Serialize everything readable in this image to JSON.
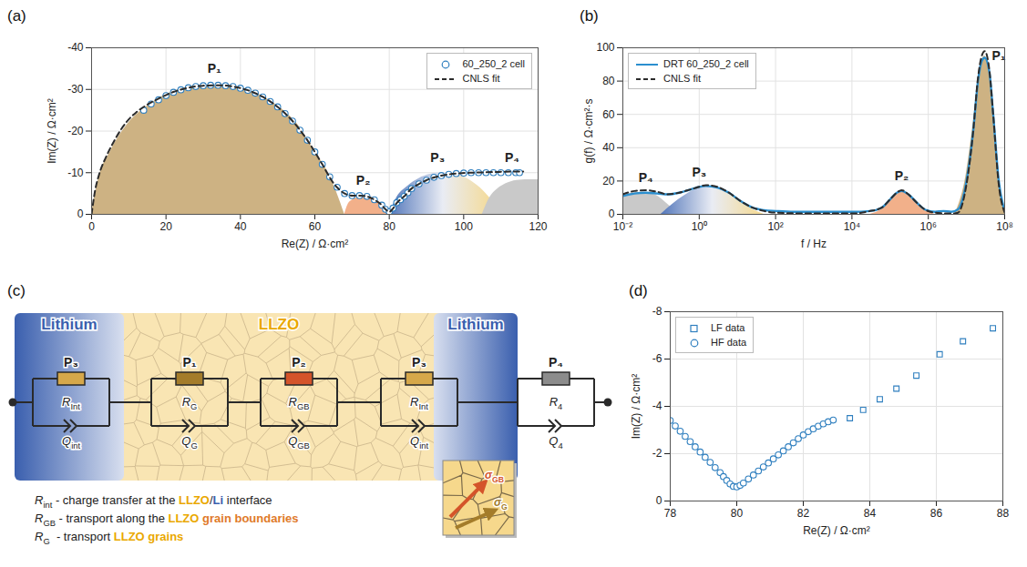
{
  "chart_data": [
    {
      "panel_label": "(a)",
      "type": "line",
      "xlabel": "Re(Z) / Ω·cm²",
      "ylabel": "Im(Z) / Ω·cm²",
      "xlim": [
        0,
        120
      ],
      "xticks": [
        0,
        20,
        40,
        60,
        80,
        100,
        120
      ],
      "ylim": [
        0,
        -40
      ],
      "yticks": [
        -40,
        -30,
        -20,
        -10,
        0
      ],
      "grid": true,
      "legend": "top-right",
      "series": [
        {
          "name": "60_250_2 cell",
          "type": "scatter",
          "marker": "circle",
          "color": "#2f7fbf",
          "x": [
            14,
            16,
            18,
            20,
            22,
            24,
            26,
            28,
            30,
            32,
            34,
            36,
            38,
            40,
            42,
            44,
            46,
            48,
            50,
            52,
            54,
            56,
            58,
            60,
            62,
            64,
            66,
            68,
            70,
            72,
            74,
            76,
            78,
            79,
            80,
            81,
            82,
            83,
            84,
            85,
            86,
            88,
            90,
            92,
            94,
            96,
            98,
            100,
            102,
            104,
            106,
            108,
            110,
            112,
            114,
            115
          ],
          "y": [
            -25,
            -26.5,
            -27.5,
            -28.5,
            -29.3,
            -29.9,
            -30.4,
            -30.7,
            -30.9,
            -31,
            -31,
            -30.9,
            -30.7,
            -30.3,
            -29.8,
            -29.1,
            -28.2,
            -27.1,
            -25.8,
            -24.2,
            -22.4,
            -20.2,
            -17.8,
            -15,
            -12,
            -9,
            -6.5,
            -5,
            -4.5,
            -4.5,
            -4.3,
            -3.5,
            -2.2,
            -1.2,
            -0.6,
            -1.5,
            -2.8,
            -3.5,
            -4.3,
            -5.2,
            -6.2,
            -7.3,
            -8.2,
            -8.9,
            -9.3,
            -9.6,
            -9.8,
            -9.9,
            -10,
            -10,
            -10,
            -10,
            -10,
            -10,
            -10,
            -10
          ]
        },
        {
          "name": "CNLS fit",
          "type": "line",
          "line_style": "dashed",
          "color": "#2b2b2b",
          "x": [
            0,
            1,
            2,
            4,
            6,
            8,
            10,
            12,
            14,
            18,
            22,
            26,
            30,
            34,
            38,
            42,
            46,
            50,
            54,
            58,
            62,
            65,
            68,
            70,
            72,
            74,
            76,
            78,
            79,
            80,
            81,
            82,
            84,
            86,
            88,
            90,
            94,
            98,
            102,
            106,
            110,
            116
          ],
          "y": [
            0,
            -6,
            -9.5,
            -14,
            -17.5,
            -20.5,
            -22.8,
            -24.5,
            -25.8,
            -27.8,
            -29.4,
            -30.4,
            -30.9,
            -31,
            -30.7,
            -29.8,
            -28.2,
            -25.8,
            -22.4,
            -17.8,
            -12,
            -7.5,
            -5,
            -4.5,
            -4.5,
            -4.3,
            -3.5,
            -2.2,
            -1.2,
            -0.6,
            -1.4,
            -2.7,
            -4.3,
            -6.2,
            -7.3,
            -8.2,
            -9.3,
            -9.8,
            -10,
            -10.1,
            -10.2,
            -10.3
          ]
        }
      ],
      "areas": [
        {
          "label": "P₁",
          "color": "#cdb283",
          "label_x": 33,
          "label_y": -35,
          "x": [
            0,
            2,
            5,
            10,
            15,
            20,
            25,
            30,
            35,
            40,
            45,
            50,
            55,
            60,
            63,
            66,
            68
          ],
          "y": [
            0,
            -9,
            -15,
            -22,
            -26,
            -28.8,
            -30.3,
            -31,
            -31,
            -30.3,
            -28.8,
            -26,
            -22,
            -15,
            -11,
            -5,
            0
          ]
        },
        {
          "label": "P₂",
          "color": "#f2b08a",
          "label_x": 73,
          "label_y": -8,
          "x": [
            68,
            69,
            70,
            72,
            74,
            76,
            78,
            79,
            80
          ],
          "y": [
            0,
            -2.5,
            -3.4,
            -4.1,
            -4.2,
            -3.6,
            -2.5,
            -1.6,
            0
          ]
        },
        {
          "label": "P₃",
          "colors": [
            "#5276ba",
            "#e9ecf4",
            "#f5d98e"
          ],
          "label_x": 93,
          "label_y": -13.5,
          "x": [
            80,
            82,
            85,
            88,
            91,
            94,
            97,
            100,
            103,
            106,
            108,
            109
          ],
          "y": [
            0,
            -4,
            -6.8,
            -8.6,
            -9.6,
            -10,
            -9.8,
            -9,
            -7.4,
            -5,
            -2.5,
            0
          ]
        },
        {
          "label": "P₄",
          "color": "#c9c9c9",
          "label_x": 113,
          "label_y": -13.5,
          "x": [
            105,
            107,
            109,
            112,
            115,
            118,
            120
          ],
          "y": [
            0,
            -4,
            -6,
            -7.6,
            -8.2,
            -8.3,
            -8.3
          ]
        }
      ]
    },
    {
      "panel_label": "(b)",
      "type": "line",
      "xlabel": "f / Hz",
      "ylabel": "g(f) / Ω·cm²·s",
      "log": "x",
      "xlim": [
        0.01,
        100000000
      ],
      "xticks": [
        {
          "value": 0.01,
          "label": "10⁻²"
        },
        {
          "value": 1,
          "label": "10⁰"
        },
        {
          "value": 100,
          "label": "10²"
        },
        {
          "value": 10000,
          "label": "10⁴"
        },
        {
          "value": 1000000,
          "label": "10⁶"
        },
        {
          "value": 100000000,
          "label": "10⁸"
        }
      ],
      "ylim": [
        0,
        100
      ],
      "yticks": [
        0,
        20,
        40,
        60,
        80,
        100
      ],
      "grid": true,
      "legend": "top-left",
      "series": [
        {
          "name": "DRT 60_250_2 cell",
          "type": "line",
          "line_style": "solid",
          "color": "#2b8fcf",
          "x": [
            0.01,
            0.02,
            0.04,
            0.08,
            0.15,
            0.3,
            0.6,
            1,
            1.5,
            3,
            6,
            12,
            25,
            50,
            100,
            300,
            1000,
            3000,
            10000,
            30000,
            60000,
            100000,
            150000,
            200000,
            300000,
            500000,
            800000,
            1500000,
            2500000,
            4000000,
            6000000,
            10000000,
            15000000,
            20000000,
            25000000,
            30000000,
            40000000,
            50000000,
            70000000,
            100000000
          ],
          "y": [
            11,
            12.5,
            13,
            12.5,
            12,
            13,
            15,
            16.5,
            17,
            16,
            13,
            8,
            4,
            2.5,
            2,
            1.5,
            1.5,
            1.5,
            1.5,
            2,
            4,
            9,
            13,
            14,
            12,
            7,
            3,
            1.5,
            2,
            1.5,
            3,
            20,
            50,
            80,
            92,
            94,
            85,
            60,
            20,
            2
          ]
        },
        {
          "name": "CNLS fit",
          "type": "line",
          "line_style": "dashed",
          "color": "#2b2b2b",
          "x": [
            0.01,
            0.02,
            0.04,
            0.08,
            0.15,
            0.3,
            0.6,
            1,
            1.5,
            3,
            6,
            12,
            25,
            50,
            100,
            1000,
            10000,
            30000,
            60000,
            100000,
            150000,
            200000,
            300000,
            500000,
            800000,
            1500000,
            4000000,
            6000000,
            10000000,
            15000000,
            20000000,
            25000000,
            30000000,
            40000000,
            50000000,
            70000000,
            100000000
          ],
          "y": [
            12,
            14,
            14.5,
            13.5,
            12,
            13,
            15,
            16.5,
            17.5,
            16.5,
            13,
            8,
            4,
            2,
            1,
            0.5,
            0.5,
            2,
            4,
            9,
            13,
            14.5,
            12,
            7,
            3,
            1,
            0.5,
            1,
            18,
            50,
            82,
            95,
            98,
            86,
            60,
            18,
            1
          ]
        }
      ],
      "areas": [
        {
          "label": "P₄",
          "color": "#c9c9c9",
          "label_x": 0.04,
          "label_y": 22,
          "x": [
            0.01,
            0.02,
            0.04,
            0.08,
            0.15,
            0.3
          ],
          "y": [
            11,
            13,
            13,
            11,
            6,
            0
          ]
        },
        {
          "label": "P₃",
          "colors": [
            "#5276ba",
            "#e9ecf4",
            "#f5d98e"
          ],
          "label_x": 1,
          "label_y": 25,
          "x": [
            0.1,
            0.2,
            0.4,
            0.8,
            1.5,
            3,
            6,
            12,
            25,
            50
          ],
          "y": [
            0,
            6,
            11,
            15,
            17,
            16,
            13,
            8,
            3,
            0
          ]
        },
        {
          "label": "P₂",
          "color": "#f2b08a",
          "label_x": 200000,
          "label_y": 23,
          "x": [
            30000,
            60000,
            100000,
            150000,
            200000,
            300000,
            500000,
            800000,
            1500000
          ],
          "y": [
            0,
            3,
            8,
            12,
            14,
            12,
            7,
            3,
            0
          ]
        },
        {
          "label": "P₁",
          "color": "#cdb283",
          "label_x": 70000000,
          "label_y": 95,
          "x": [
            5000000,
            10000000,
            15000000,
            20000000,
            25000000,
            30000000,
            40000000,
            50000000,
            70000000,
            100000000
          ],
          "y": [
            0,
            25,
            55,
            80,
            92,
            95,
            85,
            60,
            20,
            2
          ]
        }
      ]
    },
    {
      "panel_label": "(d)",
      "type": "scatter",
      "xlabel": "Re(Z) / Ω·cm²",
      "ylabel": "Im(Z) / Ω·cm²",
      "xlim": [
        78,
        88
      ],
      "xticks": [
        78,
        80,
        82,
        84,
        86,
        88
      ],
      "ylim": [
        0,
        -8
      ],
      "yticks": [
        -8,
        -6,
        -4,
        -2,
        0
      ],
      "grid": true,
      "legend": "top-left",
      "series": [
        {
          "name": "LF data",
          "type": "scatter",
          "marker": "square",
          "color": "#2f7fbf",
          "x": [
            83.4,
            83.8,
            84.3,
            84.8,
            85.4,
            86.1,
            86.8,
            87.7
          ],
          "y": [
            -3.5,
            -3.85,
            -4.3,
            -4.75,
            -5.3,
            -6.2,
            -6.75,
            -7.3
          ]
        },
        {
          "name": "HF data",
          "type": "scatter",
          "marker": "circle",
          "color": "#2f7fbf",
          "x": [
            78,
            78.15,
            78.3,
            78.45,
            78.6,
            78.75,
            78.9,
            79.05,
            79.2,
            79.35,
            79.5,
            79.6,
            79.7,
            79.8,
            79.9,
            80,
            80.1,
            80.2,
            80.35,
            80.5,
            80.65,
            80.8,
            80.95,
            81.1,
            81.25,
            81.4,
            81.55,
            81.7,
            81.85,
            82,
            82.15,
            82.3,
            82.45,
            82.6,
            82.75,
            82.9
          ],
          "y": [
            -3.4,
            -3.17,
            -2.95,
            -2.73,
            -2.51,
            -2.29,
            -2.07,
            -1.85,
            -1.63,
            -1.41,
            -1.2,
            -1.03,
            -0.87,
            -0.72,
            -0.62,
            -0.6,
            -0.66,
            -0.76,
            -0.93,
            -1.1,
            -1.27,
            -1.44,
            -1.61,
            -1.78,
            -1.95,
            -2.12,
            -2.29,
            -2.46,
            -2.63,
            -2.79,
            -2.93,
            -3.05,
            -3.16,
            -3.26,
            -3.35,
            -3.42
          ]
        }
      ]
    }
  ],
  "diagram": {
    "panel_label": "(c)",
    "regions": [
      {
        "label": "Lithium",
        "color": "#3a5fae"
      },
      {
        "label": "LLZO",
        "color": "#eaa800"
      },
      {
        "label": "Lithium",
        "color": "#3a5fae"
      }
    ],
    "elements": [
      {
        "label": "P₃",
        "R": {
          "main": "R",
          "sub": "Int"
        },
        "Q": {
          "main": "Q",
          "sub": "int"
        },
        "color": "#d6a84a"
      },
      {
        "label": "P₁",
        "R": {
          "main": "R",
          "sub": "G"
        },
        "Q": {
          "main": "Q",
          "sub": "G"
        },
        "color": "#a47c2a"
      },
      {
        "label": "P₂",
        "R": {
          "main": "R",
          "sub": "GB"
        },
        "Q": {
          "main": "Q",
          "sub": "GB"
        },
        "color": "#d4542a"
      },
      {
        "label": "P₃",
        "R": {
          "main": "R",
          "sub": "Int"
        },
        "Q": {
          "main": "Q",
          "sub": "int"
        },
        "color": "#d6a84a"
      },
      {
        "label": "P₄",
        "R": {
          "main": "R",
          "sub": "4"
        },
        "Q": {
          "main": "Q",
          "sub": "4"
        },
        "color": "#8c8c8c"
      }
    ],
    "definitions": [
      {
        "symbol": {
          "main": "R",
          "sub": "int"
        },
        "segments": [
          {
            "text": " - charge transfer at the "
          },
          {
            "text": "LLZO",
            "color": "#eaa800"
          },
          {
            "text": "/"
          },
          {
            "text": "Li",
            "color": "#3a5fae"
          },
          {
            "text": " interface"
          }
        ]
      },
      {
        "symbol": {
          "main": "R",
          "sub": "GB"
        },
        "segments": [
          {
            "text": " - transport along the "
          },
          {
            "text": "LLZO",
            "color": "#eaa800"
          },
          {
            "text": " "
          },
          {
            "text": "grain boundaries",
            "color": "#e07a2a"
          }
        ]
      },
      {
        "symbol": {
          "main": "R",
          "sub": "G"
        },
        "segments": [
          {
            "text": "  - transport "
          },
          {
            "text": "LLZO grains",
            "color": "#eaa800"
          }
        ]
      }
    ],
    "inset": {
      "arrows": [
        {
          "label": {
            "main": "σ",
            "sub": "GB"
          },
          "color": "#d4542a"
        },
        {
          "label": {
            "main": "σ",
            "sub": "G"
          },
          "color": "#a47c2a"
        }
      ]
    }
  }
}
